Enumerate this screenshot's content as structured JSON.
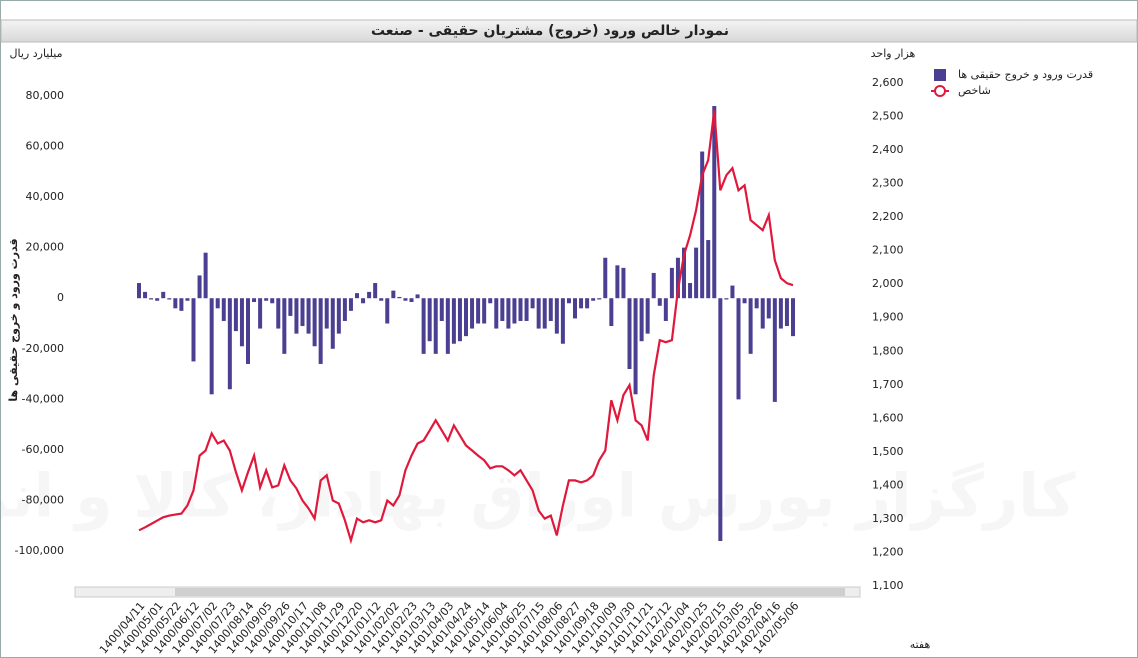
{
  "chart_data": {
    "type": "bar-line",
    "title": "نمودار خالص ورود (خروج) مشتریان حقیقی - صنعت",
    "y_unit": "میلیارد ریال",
    "y2_unit": "هزار واحد",
    "y_label": "قدرت ورود و خروج حقیقی ها",
    "x_label": "هفته",
    "watermark": "کارگزار بورس اوراق بهادار، کالا و انرژی",
    "categories": [
      "1400/04/11",
      null,
      null,
      "1400/05/01",
      null,
      null,
      "1400/05/22",
      null,
      null,
      "1400/06/12",
      null,
      null,
      "1400/07/02",
      null,
      null,
      "1400/07/23",
      null,
      null,
      "1400/08/14",
      null,
      null,
      "1400/09/05",
      null,
      null,
      "1400/09/26",
      null,
      null,
      "1400/10/17",
      null,
      null,
      "1400/11/08",
      null,
      null,
      "1400/11/29",
      null,
      null,
      "1400/12/20",
      null,
      null,
      "1401/01/12",
      null,
      null,
      "1401/02/02",
      null,
      null,
      "1401/02/23",
      null,
      null,
      "1401/03/13",
      null,
      null,
      "1401/04/03",
      null,
      null,
      "1401/04/24",
      null,
      null,
      "1401/05/14",
      null,
      null,
      "1401/06/04",
      null,
      null,
      "1401/06/25",
      null,
      null,
      "1401/07/15",
      null,
      null,
      "1401/08/06",
      null,
      null,
      "1401/08/27",
      null,
      null,
      "1401/09/18",
      null,
      null,
      "1401/10/09",
      null,
      null,
      "1401/10/30",
      null,
      null,
      "1401/11/21",
      null,
      null,
      "1401/12/12",
      null,
      null,
      "1402/01/04",
      null,
      null,
      "1402/01/25",
      null,
      null,
      "1402/02/15",
      null,
      null,
      "1402/03/05",
      null,
      null,
      "1402/03/26",
      null,
      null,
      "1402/04/16",
      null,
      null,
      "1402/05/06"
    ],
    "series": [
      {
        "name": "قدرت ورود و خروج حقیقی ها",
        "type": "bar",
        "color": "#4b3f91",
        "values": [
          6000,
          2500,
          -500,
          -1000,
          2500,
          -500,
          -4000,
          -5000,
          -1000,
          -25000,
          9000,
          18000,
          -38000,
          -4000,
          -9000,
          -36000,
          -13000,
          -19000,
          -26000,
          -1500,
          -12000,
          -1000,
          -2000,
          -12000,
          -22000,
          -7000,
          -14000,
          -11000,
          -14000,
          -19000,
          -26000,
          -12000,
          -20000,
          -14000,
          -9000,
          -5000,
          2000,
          -2000,
          2500,
          6000,
          -1000,
          -10000,
          3000,
          500,
          -1000,
          -1500,
          1500,
          -22000,
          -17000,
          -22000,
          -9000,
          -22000,
          -18000,
          -17000,
          -15000,
          -12000,
          -10000,
          -10000,
          -2000,
          -12000,
          -9000,
          -12000,
          -10000,
          -9000,
          -9000,
          -4000,
          -12000,
          -12000,
          -9000,
          -14000,
          -18000,
          -2000,
          -8000,
          -4000,
          -4000,
          -1000,
          -500,
          16000,
          -11000,
          13000,
          12000,
          -28000,
          -38000,
          -17000,
          -14000,
          10000,
          -3000,
          -9000,
          12000,
          16000,
          20000,
          6000,
          20000,
          58000,
          23000,
          76000,
          -96000,
          -500,
          5000,
          -40000,
          -2000,
          -22000,
          -4000,
          -12000,
          -8000,
          -41000,
          -12000,
          -11000,
          -15000
        ]
      },
      {
        "name": "شاخص",
        "type": "line",
        "axis": "y2",
        "color": "#e0183c",
        "values": [
          1266,
          1275,
          1285,
          1295,
          1305,
          1310,
          1313,
          1316,
          1340,
          1385,
          1489,
          1504,
          1555,
          1525,
          1534,
          1504,
          1440,
          1385,
          1439,
          1489,
          1394,
          1445,
          1394,
          1400,
          1460,
          1415,
          1391,
          1355,
          1331,
          1301,
          1415,
          1430,
          1355,
          1346,
          1296,
          1236,
          1301,
          1290,
          1296,
          1290,
          1296,
          1355,
          1340,
          1370,
          1445,
          1489,
          1525,
          1534,
          1564,
          1594,
          1564,
          1534,
          1579,
          1549,
          1519,
          1504,
          1489,
          1475,
          1451,
          1457,
          1457,
          1445,
          1430,
          1445,
          1415,
          1385,
          1325,
          1301,
          1310,
          1251,
          1340,
          1415,
          1415,
          1409,
          1415,
          1430,
          1475,
          1504,
          1654,
          1594,
          1669,
          1699,
          1594,
          1579,
          1534,
          1728,
          1833,
          1827,
          1833,
          1982,
          2087,
          2146,
          2221,
          2325,
          2370,
          2519,
          2280,
          2325,
          2346,
          2280,
          2295,
          2191,
          2176,
          2161,
          2206,
          2072,
          2018,
          2003,
          1997
        ]
      }
    ],
    "ylim": [
      -113800,
      85100
    ],
    "yticks": [
      {
        "value": 80000,
        "label": "80,000"
      },
      {
        "value": 60000,
        "label": "60,000"
      },
      {
        "value": 40000,
        "label": "40,000"
      },
      {
        "value": 20000,
        "label": "20,000"
      },
      0,
      {
        "value": -20000,
        "label": "-20,000"
      },
      {
        "value": -40000,
        "label": "-40,000"
      },
      {
        "value": -60000,
        "label": "-60,000"
      },
      {
        "value": -80000,
        "label": "-80,000"
      },
      {
        "value": -100000,
        "label": "-100,000"
      }
    ],
    "y2lim": [
      1100,
      2600
    ],
    "y2ticks": [
      {
        "value": 2600,
        "label": "2,600"
      },
      {
        "value": 2500,
        "label": "2,500"
      },
      {
        "value": 2400,
        "label": "2,400"
      },
      {
        "value": 2300,
        "label": "2,300"
      },
      {
        "value": 2200,
        "label": "2,200"
      },
      {
        "value": 2100,
        "label": "2,100"
      },
      {
        "value": 2000,
        "label": "2,000"
      },
      {
        "value": 1900,
        "label": "1,900"
      },
      {
        "value": 1800,
        "label": "1,800"
      },
      {
        "value": 1700,
        "label": "1,700"
      },
      {
        "value": 1600,
        "label": "1,600"
      },
      {
        "value": 1500,
        "label": "1,500"
      },
      {
        "value": 1400,
        "label": "1,400"
      },
      {
        "value": 1300,
        "label": "1,300"
      },
      {
        "value": 1200,
        "label": "1,200"
      },
      {
        "value": 1100,
        "label": "1,100"
      }
    ]
  }
}
